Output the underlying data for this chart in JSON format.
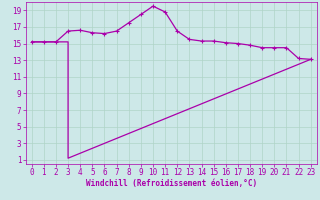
{
  "xlabel": "Windchill (Refroidissement éolien,°C)",
  "background_color": "#cde8e8",
  "grid_color": "#b0d4c8",
  "line_color": "#aa00aa",
  "xlim": [
    -0.5,
    23.5
  ],
  "ylim": [
    0.5,
    20
  ],
  "xticks": [
    0,
    1,
    2,
    3,
    4,
    5,
    6,
    7,
    8,
    9,
    10,
    11,
    12,
    13,
    14,
    15,
    16,
    17,
    18,
    19,
    20,
    21,
    22,
    23
  ],
  "yticks": [
    1,
    3,
    5,
    7,
    9,
    11,
    13,
    15,
    17,
    19
  ],
  "curve_upper_x": [
    0,
    1,
    2,
    3,
    4,
    5,
    6,
    7,
    8,
    9,
    10,
    11,
    12,
    13,
    14,
    15,
    16,
    17,
    18,
    19,
    20,
    21,
    22,
    23
  ],
  "curve_upper_y": [
    15.2,
    15.2,
    15.2,
    16.5,
    16.6,
    16.3,
    16.2,
    16.5,
    17.5,
    18.5,
    19.5,
    18.8,
    16.5,
    15.5,
    15.3,
    15.3,
    15.1,
    15.0,
    14.8,
    14.5,
    14.5,
    14.5,
    13.2,
    13.1
  ],
  "curve_lower_x": [
    0,
    1,
    2,
    3,
    3,
    23
  ],
  "curve_lower_y": [
    15.2,
    15.2,
    15.2,
    15.2,
    1.2,
    13.1
  ],
  "marker": "+",
  "markersize": 3,
  "linewidth": 0.9,
  "fontsize_tick": 5.5,
  "fontsize_label": 5.5
}
